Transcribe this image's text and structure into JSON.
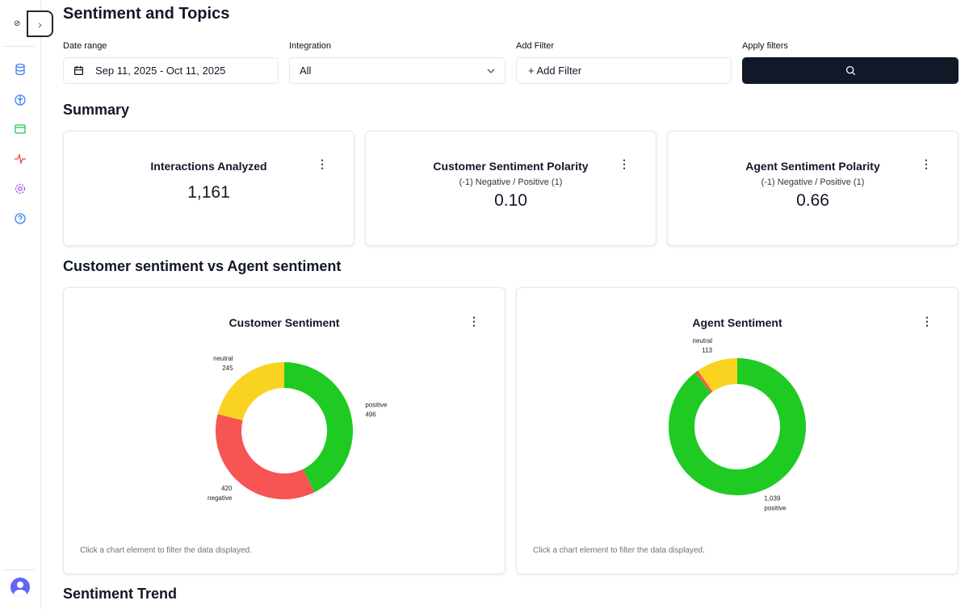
{
  "page": {
    "title": "Sentiment and Topics"
  },
  "filters": {
    "date_label": "Date range",
    "date_value": "Sep 11, 2025 - Oct 11, 2025",
    "integration_label": "Integration",
    "integration_value": "All",
    "add_filter_label": "Add Filter",
    "add_filter_button": "+ Add Filter",
    "apply_label": "Apply filters"
  },
  "summary": {
    "heading": "Summary",
    "cards": [
      {
        "title": "Interactions Analyzed",
        "subtitle": "",
        "value": "1,161"
      },
      {
        "title": "Customer Sentiment Polarity",
        "subtitle": "(-1) Negative / Positive (1)",
        "value": "0.10"
      },
      {
        "title": "Agent Sentiment Polarity",
        "subtitle": "(-1) Negative / Positive (1)",
        "value": "0.66"
      }
    ]
  },
  "comparison": {
    "heading": "Customer sentiment vs Agent sentiment",
    "hint": "Click a chart element to filter the data displayed."
  },
  "trend": {
    "heading": "Sentiment Trend"
  },
  "colors": {
    "positive": "#1fcb22",
    "negative": "#f75454",
    "neutral": "#fad321"
  },
  "chart_data": [
    {
      "type": "pie",
      "title": "Customer Sentiment",
      "donut": true,
      "categories": [
        "positive",
        "negative",
        "neutral"
      ],
      "values": [
        496,
        420,
        245
      ],
      "labels": [
        "496",
        "420",
        "245"
      ]
    },
    {
      "type": "pie",
      "title": "Agent Sentiment",
      "donut": true,
      "categories": [
        "positive",
        "negative",
        "neutral"
      ],
      "values": [
        1039,
        9,
        113
      ],
      "labels": [
        "1,039",
        "",
        "113"
      ]
    }
  ]
}
